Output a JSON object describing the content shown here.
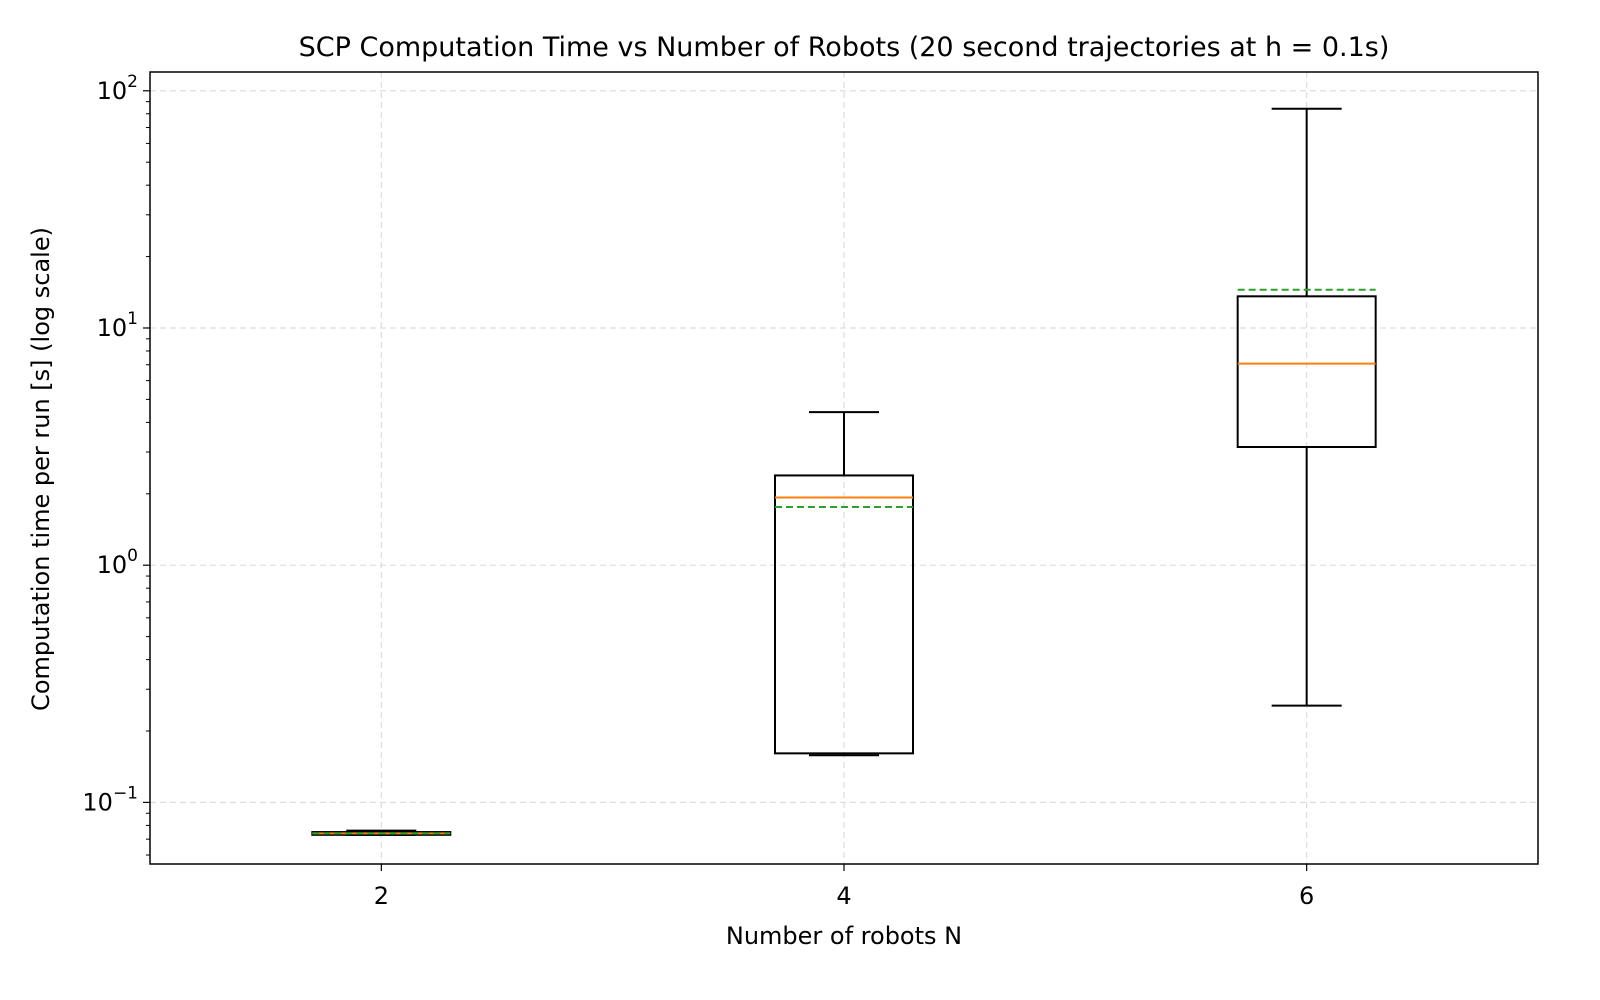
{
  "chart_data": {
    "type": "box",
    "title": "SCP Computation Time vs Number of Robots (20 second trajectories at h = 0.1s)",
    "xlabel": "Number of robots N",
    "ylabel": "Computation time per run [s] (log scale)",
    "y_scale": "log",
    "ylim": [
      0.055,
      120
    ],
    "xlim": [
      1,
      7
    ],
    "grid": true,
    "x_ticks": [
      "2",
      "4",
      "6"
    ],
    "y_ticks": [
      {
        "value": 0.1,
        "base": "10",
        "exp": "−1"
      },
      {
        "value": 1,
        "base": "10",
        "exp": "0"
      },
      {
        "value": 10,
        "base": "10",
        "exp": "1"
      },
      {
        "value": 100,
        "base": "10",
        "exp": "2"
      }
    ],
    "boxes": [
      {
        "x": 2,
        "whislo": 0.073,
        "q1": 0.073,
        "median": 0.074,
        "mean": 0.074,
        "q3": 0.075,
        "whishi": 0.076
      },
      {
        "x": 4,
        "whislo": 0.158,
        "q1": 0.161,
        "median": 1.93,
        "mean": 1.76,
        "q3": 2.39,
        "whishi": 4.42
      },
      {
        "x": 6,
        "whislo": 0.256,
        "q1": 3.15,
        "median": 7.08,
        "mean": 14.5,
        "q3": 13.6,
        "whishi": 84
      }
    ],
    "colors": {
      "median": "#ff7f0e",
      "mean": "#2ca02c",
      "box": "#000000",
      "grid": "#dddddd"
    }
  }
}
